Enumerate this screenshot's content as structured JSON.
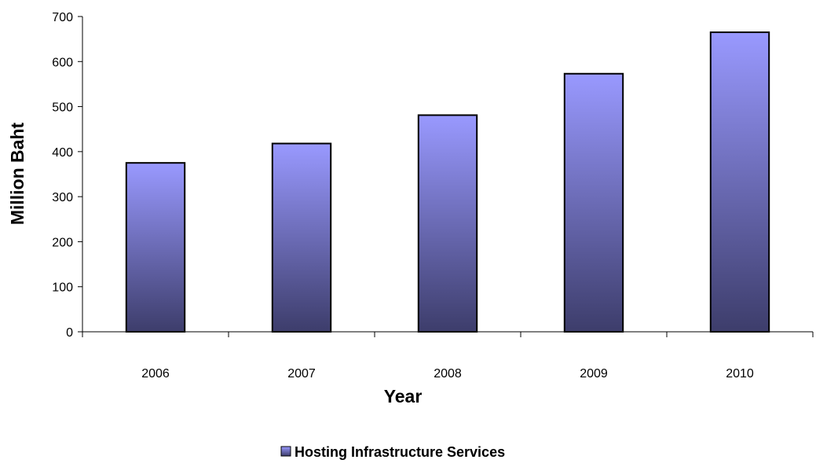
{
  "chart_data": {
    "type": "bar",
    "categories": [
      "2006",
      "2007",
      "2008",
      "2009",
      "2010"
    ],
    "series": [
      {
        "name": "Hosting Infrastructure Services",
        "values": [
          375,
          418,
          481,
          573,
          665
        ]
      }
    ],
    "xlabel": "Year",
    "ylabel": "Million Baht",
    "ylim": [
      0,
      700
    ],
    "yticks": [
      0,
      100,
      200,
      300,
      400,
      500,
      600,
      700
    ],
    "grid": false,
    "legend_position": "bottom"
  },
  "colors": {
    "bar_top": "#9999ff",
    "bar_bottom": "#3d3d6b",
    "axis": "#000000"
  }
}
